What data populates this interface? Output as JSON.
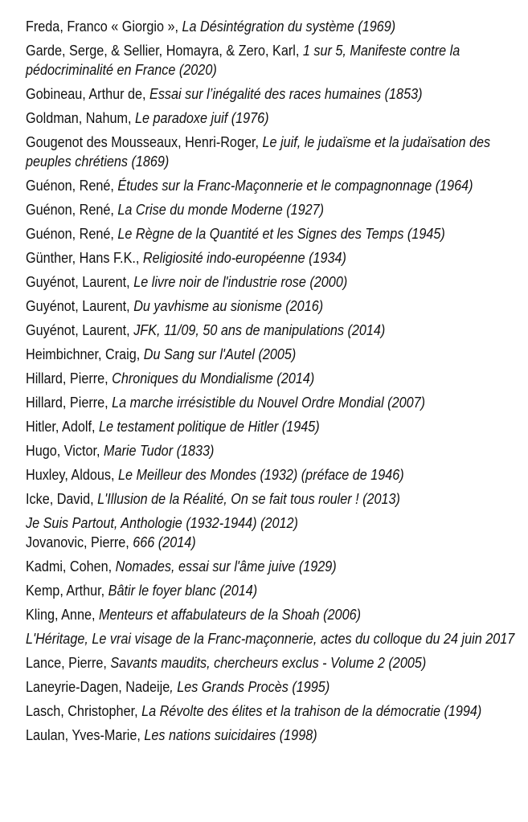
{
  "entries": [
    {
      "author": "Freda, Franco « Giorgio », ",
      "title": "La Désintégration du système (1969)"
    },
    {
      "author": "Garde, Serge, & Sellier, Homayra, & Zero, Karl,  ",
      "title": "1 sur 5, Manifeste contre la pédocriminalité en France (2020)"
    },
    {
      "author": "Gobineau, Arthur de, ",
      "title": "Essai sur l’inégalité des races humaines (1853)"
    },
    {
      "author": "Goldman, Nahum, ",
      "title": "Le paradoxe juif (1976)"
    },
    {
      "author": "Gougenot des Mousseaux, Henri-Roger, ",
      "title": "Le juif, le judaïsme et la judaïsation des peuples chrétiens (1869)"
    },
    {
      "author": "Guénon, René, ",
      "title": "Études sur la Franc-Maçonnerie et le compagnonnage (1964)"
    },
    {
      "author": "Guénon, René, ",
      "title": "La Crise du monde Moderne (1927)"
    },
    {
      "author": "Guénon, René, ",
      "title": "Le Règne de la Quantité et les Signes des Temps (1945)"
    },
    {
      "author": "Günther, Hans F.K., ",
      "title": "Religiosité indo-européenne (1934)"
    },
    {
      "author": "Guyénot,  Laurent, ",
      "title": "Le livre noir de l'industrie rose (2000)"
    },
    {
      "author": "Guyénot, Laurent, ",
      "title": "Du yavhisme au sionisme (2016)"
    },
    {
      "author": "Guyénot, Laurent, ",
      "title": "JFK, 11/09, 50 ans de manipulations (2014)"
    },
    {
      "author": "Heimbichner, Craig, ",
      "title": "Du Sang sur l'Autel (2005)"
    },
    {
      "author": "Hillard, Pierre, ",
      "title": "Chroniques du Mondialisme (2014)"
    },
    {
      "author": "Hillard, Pierre, ",
      "title": "La marche irrésistible du Nouvel Ordre Mondial (2007)"
    },
    {
      "author": "Hitler, Adolf, ",
      "title": "Le testament politique de Hitler (1945)"
    },
    {
      "author": "Hugo, Victor, ",
      "title": "Marie Tudor (1833)"
    },
    {
      "author": "Huxley, Aldous, ",
      "title": "Le Meilleur des Mondes (1932) (préface de 1946)"
    },
    {
      "author": "Icke, David, ",
      "title": "L'Illusion de la Réalité, On se fait tous rouler ! (2013)"
    },
    {
      "author": "",
      "title": "Je Suis Partout, Anthologie (1932-1944) (2012)"
    },
    {
      "author": "Jovanovic, Pierre, ",
      "title": "666 (2014)"
    },
    {
      "author": "Kadmi, Cohen, ",
      "title": "Nomades, essai sur l'âme juive (1929)"
    },
    {
      "author": "Kemp, Arthur, ",
      "title": "Bâtir le foyer blanc (2014)"
    },
    {
      "author": "Kling, Anne, ",
      "title": "Menteurs et affabulateurs de la Shoah (2006)"
    },
    {
      "author": "",
      "title": "L'Héritage, Le vrai visage de la Franc-maçonnerie, actes du colloque du 24 juin 2017"
    },
    {
      "author": "Lance, Pierre, ",
      "title": "Savants maudits, chercheurs exclus - Volume 2  (2005)"
    },
    {
      "author": "Laneyrie-Dagen, Nadeije",
      "title": ", Les Grands Procès (1995)"
    },
    {
      "author": "Lasch, Christopher, ",
      "title": "La Révolte des élites et la trahison de la démocratie (1994)"
    },
    {
      "author": "Laulan, Yves-Marie, ",
      "title": "Les nations suicidaires (1998)"
    }
  ]
}
